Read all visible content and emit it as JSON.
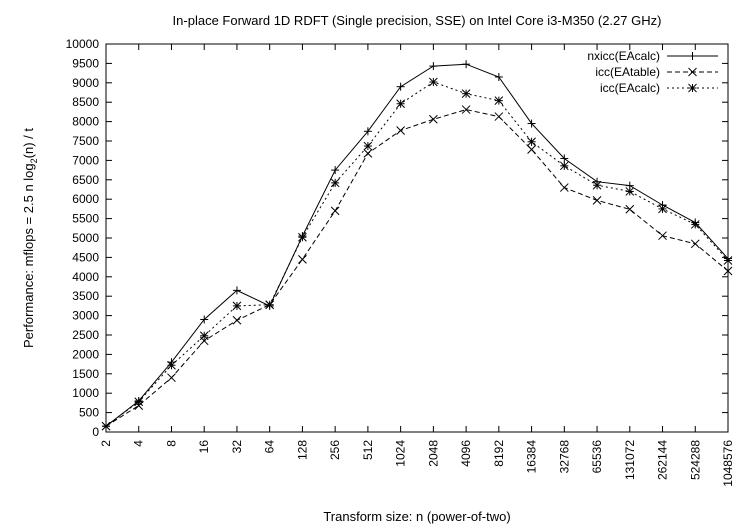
{
  "chart_data": {
    "type": "line",
    "title": "In-place Forward 1D RDFT (Single precision, SSE) on Intel Core i3-M350 (2.27 GHz)",
    "xlabel": "Transform size: n (power-of-two)",
    "ylabel_parts": [
      "Performance: mflops = 2.5 n log",
      "2",
      "(n) / t"
    ],
    "categories": [
      "2",
      "4",
      "8",
      "16",
      "32",
      "64",
      "128",
      "256",
      "512",
      "1024",
      "2048",
      "4096",
      "8192",
      "16384",
      "32768",
      "65536",
      "131072",
      "262144",
      "524288",
      "1048576"
    ],
    "ylim": [
      0,
      10000
    ],
    "yticks": [
      0,
      500,
      1000,
      1500,
      2000,
      2500,
      3000,
      3500,
      4000,
      4500,
      5000,
      5500,
      6000,
      6500,
      7000,
      7500,
      8000,
      8500,
      9000,
      9500,
      10000
    ],
    "grid": false,
    "legend_position": "top-right",
    "series": [
      {
        "name": "nxicc(EAcalc)",
        "marker": "plus",
        "dash": "solid",
        "values": [
          150,
          800,
          1800,
          2900,
          3650,
          3250,
          5050,
          6750,
          7750,
          8900,
          9430,
          9480,
          9150,
          7950,
          7050,
          6450,
          6350,
          5850,
          5400,
          4470
        ]
      },
      {
        "name": "icc(EAtable)",
        "marker": "cross",
        "dash": "dashed",
        "values": [
          150,
          680,
          1400,
          2350,
          2880,
          3280,
          4450,
          5700,
          7180,
          7770,
          8060,
          8310,
          8130,
          7280,
          6300,
          5970,
          5740,
          5060,
          4850,
          4150
        ]
      },
      {
        "name": "icc(EAcalc)",
        "marker": "star",
        "dash": "dotted",
        "values": [
          150,
          780,
          1720,
          2480,
          3250,
          3280,
          5020,
          6420,
          7370,
          8460,
          9020,
          8720,
          8540,
          7480,
          6860,
          6360,
          6200,
          5750,
          5350,
          4420
        ]
      }
    ]
  }
}
